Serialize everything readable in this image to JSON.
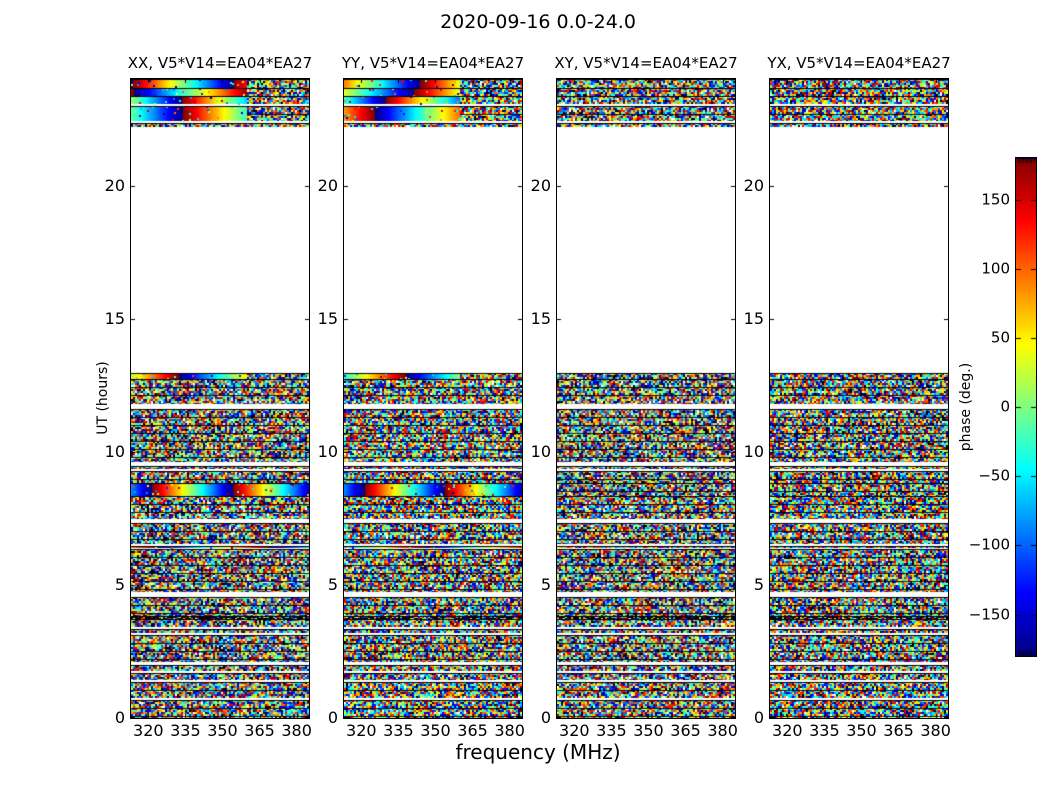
{
  "chart_data": {
    "type": "heatmap",
    "suptitle": "2020-09-16 0.0-24.0",
    "xlabel": "frequency (MHz)",
    "ylabel": "UT (hours)",
    "x_range_mhz": [
      313,
      385
    ],
    "x_ticks": [
      320,
      335,
      350,
      365,
      380
    ],
    "y_range_hours": [
      0,
      24
    ],
    "y_ticks": [
      0,
      5,
      10,
      15,
      20
    ],
    "colormap": "jet",
    "colorbar": {
      "label": "phase (deg.)",
      "range_deg": [
        -180,
        180
      ],
      "ticks": [
        150,
        100,
        50,
        0,
        -50,
        -100,
        -150
      ]
    },
    "panels": [
      {
        "pol": "xx",
        "title": "XX, V5*V14=EA04*EA27",
        "has_phase_gradient": true
      },
      {
        "pol": "yy",
        "title": "YY, V5*V14=EA04*EA27",
        "has_phase_gradient": true
      },
      {
        "pol": "xy",
        "title": "XY, V5*V14=EA04*EA27",
        "has_phase_gradient": false
      },
      {
        "pol": "yx",
        "title": "YX, V5*V14=EA04*EA27",
        "has_phase_gradient": false
      }
    ],
    "gradient_fraction": 0.65,
    "bands": [
      {
        "t0": 23.67,
        "t1": 24.0,
        "kind": "grad",
        "frac": 0.65,
        "cycles": 1.15
      },
      {
        "t0": 23.36,
        "t1": 23.67,
        "kind": "grad",
        "frac": 0.65,
        "cycles": 1.0
      },
      {
        "t0": 23.06,
        "t1": 23.36,
        "kind": "grad",
        "frac": 0.65,
        "cycles": 1.2
      },
      {
        "t0": 22.98,
        "t1": 23.06,
        "kind": "white"
      },
      {
        "t0": 22.44,
        "t1": 22.98,
        "kind": "grad",
        "frac": 0.65,
        "cycles": 1.05
      },
      {
        "t0": 22.36,
        "t1": 22.44,
        "kind": "white"
      },
      {
        "t0": 22.2,
        "t1": 22.36,
        "kind": "noise"
      },
      {
        "t0": 12.95,
        "t1": 22.2,
        "kind": "white"
      },
      {
        "t0": 12.72,
        "t1": 12.95,
        "kind": "grad",
        "frac": 0.65,
        "cycles": 1.1
      },
      {
        "t0": 11.8,
        "t1": 12.72,
        "kind": "noise"
      },
      {
        "t0": 11.62,
        "t1": 11.8,
        "kind": "white"
      },
      {
        "t0": 9.6,
        "t1": 11.62,
        "kind": "noise"
      },
      {
        "t0": 9.45,
        "t1": 9.6,
        "kind": "white"
      },
      {
        "t0": 9.34,
        "t1": 9.45,
        "kind": "noise"
      },
      {
        "t0": 9.28,
        "t1": 9.34,
        "kind": "white"
      },
      {
        "t0": 8.84,
        "t1": 9.28,
        "kind": "noise"
      },
      {
        "t0": 8.32,
        "t1": 8.84,
        "kind": "grad",
        "frac": 1.0,
        "cycles": 2.2
      },
      {
        "t0": 7.46,
        "t1": 8.32,
        "kind": "noise"
      },
      {
        "t0": 7.32,
        "t1": 7.46,
        "kind": "white"
      },
      {
        "t0": 6.52,
        "t1": 7.32,
        "kind": "noise"
      },
      {
        "t0": 6.46,
        "t1": 6.52,
        "kind": "white"
      },
      {
        "t0": 6.4,
        "t1": 6.46,
        "kind": "gradline",
        "frac": 1.0,
        "cycles": 1.6
      },
      {
        "t0": 6.33,
        "t1": 6.4,
        "kind": "white"
      },
      {
        "t0": 4.72,
        "t1": 6.33,
        "kind": "noise"
      },
      {
        "t0": 4.55,
        "t1": 4.72,
        "kind": "white"
      },
      {
        "t0": 3.82,
        "t1": 4.55,
        "kind": "noise"
      },
      {
        "t0": 3.7,
        "t1": 3.82,
        "kind": "dark"
      },
      {
        "t0": 3.42,
        "t1": 3.7,
        "kind": "noise"
      },
      {
        "t0": 3.35,
        "t1": 3.42,
        "kind": "white"
      },
      {
        "t0": 3.19,
        "t1": 3.35,
        "kind": "noise"
      },
      {
        "t0": 3.12,
        "t1": 3.19,
        "kind": "white"
      },
      {
        "t0": 2.1,
        "t1": 3.12,
        "kind": "noise"
      },
      {
        "t0": 2.0,
        "t1": 2.1,
        "kind": "white"
      },
      {
        "t0": 1.78,
        "t1": 2.0,
        "kind": "noise"
      },
      {
        "t0": 1.7,
        "t1": 1.78,
        "kind": "white"
      },
      {
        "t0": 1.44,
        "t1": 1.7,
        "kind": "noise"
      },
      {
        "t0": 1.35,
        "t1": 1.44,
        "kind": "white"
      },
      {
        "t0": 0.75,
        "t1": 1.35,
        "kind": "noise"
      },
      {
        "t0": 0.68,
        "t1": 0.75,
        "kind": "white"
      },
      {
        "t0": 0.0,
        "t1": 0.68,
        "kind": "noise"
      }
    ]
  }
}
